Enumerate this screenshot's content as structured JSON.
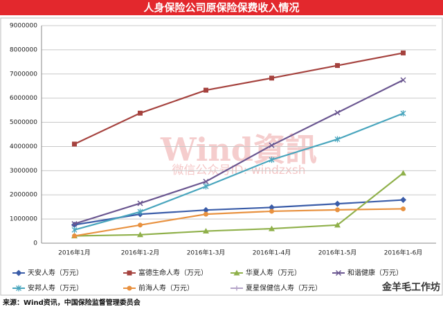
{
  "chart_data": {
    "type": "line",
    "title": "人身保险公司原保险保费收入情况",
    "categories": [
      "2016年1月",
      "2016年1-2月",
      "2016年1-3月",
      "2016年1-4月",
      "2016年1-5月",
      "2016年1-6月"
    ],
    "series": [
      {
        "name": "天安人寿（万元）",
        "color": "#3a5ca8",
        "values": [
          760000,
          1200000,
          1370000,
          1480000,
          1630000,
          1790000
        ]
      },
      {
        "name": "富德生命人寿（万元）",
        "color": "#a5423e",
        "values": [
          4100000,
          5380000,
          6330000,
          6830000,
          7350000,
          7870000
        ]
      },
      {
        "name": "华夏人寿（万元）",
        "color": "#8fb04a",
        "values": [
          300000,
          350000,
          500000,
          600000,
          750000,
          2900000
        ]
      },
      {
        "name": "和谐健康（万元）",
        "color": "#6a5690",
        "values": [
          800000,
          1650000,
          2550000,
          4050000,
          5400000,
          6750000
        ]
      },
      {
        "name": "安邦人寿（万元）",
        "color": "#48a5bd",
        "values": [
          550000,
          1300000,
          2350000,
          3450000,
          4300000,
          5370000
        ]
      },
      {
        "name": "前海人寿（万元）",
        "color": "#e8913f",
        "values": [
          300000,
          750000,
          1200000,
          1320000,
          1380000,
          1420000
        ]
      },
      {
        "name": "夏星保健信人寿（万元）",
        "color": "#b3a2c7",
        "values": [
          null,
          null,
          null,
          null,
          null,
          null
        ]
      }
    ],
    "ylim": [
      0,
      9000000
    ],
    "yticks": [
      0,
      1000000,
      2000000,
      3000000,
      4000000,
      5000000,
      6000000,
      7000000,
      8000000,
      9000000
    ],
    "grid": true,
    "legend": "bottom",
    "watermark": "Wind資訊",
    "watermark_sub": "微信公众号ID: windzxsh",
    "logo": "金羊毛工作坊",
    "source": "来源：Wind资讯，中国保险监督管理委员会"
  }
}
